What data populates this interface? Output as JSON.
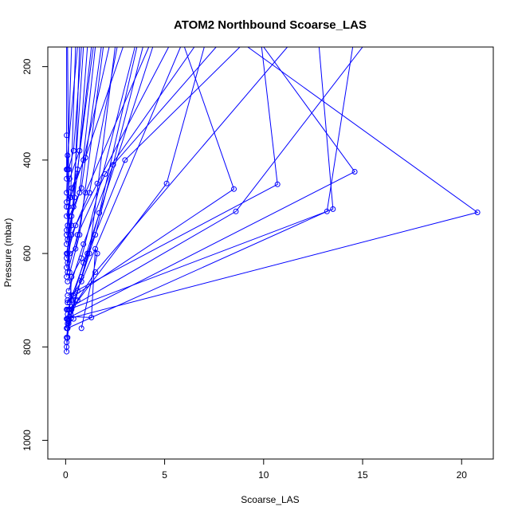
{
  "chart_data": {
    "type": "line",
    "title": "ATOM2 Northbound Scoarse_LAS",
    "xlabel": "Scoarse_LAS",
    "ylabel": "Pressure (mbar)",
    "xlim": [
      -0.9,
      21.6
    ],
    "ylim": [
      1040,
      158
    ],
    "y_reversed": true,
    "x_ticks": [
      0,
      5,
      10,
      15,
      20
    ],
    "y_ticks": [
      200,
      400,
      600,
      800,
      1000
    ],
    "x_tick_labels": [
      "0",
      "5",
      "10",
      "15",
      "20"
    ],
    "y_tick_labels": [
      "200",
      "400",
      "600",
      "800",
      "1000"
    ],
    "grid": false,
    "legend": "none",
    "series_color": "#0000ff",
    "series": [
      {
        "points": [
          [
            0.05,
            810
          ],
          [
            0.05,
            800
          ],
          [
            0.1,
            780
          ],
          [
            0.1,
            760
          ],
          [
            0.15,
            740
          ],
          [
            0.2,
            720
          ],
          [
            0.3,
            650
          ],
          [
            0.8,
            610
          ],
          [
            3.5,
            158
          ]
        ]
      },
      {
        "points": [
          [
            0.05,
            780
          ],
          [
            0.1,
            760
          ],
          [
            13.2,
            510
          ],
          [
            14.5,
            158
          ]
        ]
      },
      {
        "points": [
          [
            0.05,
            760
          ],
          [
            0.1,
            740
          ],
          [
            20.8,
            512
          ],
          [
            9.2,
            158
          ]
        ]
      },
      {
        "points": [
          [
            0.1,
            740
          ],
          [
            0.15,
            720
          ],
          [
            13.5,
            505
          ],
          [
            12.8,
            158
          ]
        ]
      },
      {
        "points": [
          [
            0.05,
            740
          ],
          [
            14.6,
            425
          ],
          [
            10.0,
            158
          ]
        ]
      },
      {
        "points": [
          [
            0.1,
            700
          ],
          [
            8.5,
            462
          ],
          [
            6.0,
            158
          ]
        ]
      },
      {
        "points": [
          [
            0.05,
            720
          ],
          [
            8.6,
            510
          ],
          [
            15.0,
            158
          ]
        ]
      },
      {
        "points": [
          [
            0.1,
            690
          ],
          [
            10.7,
            452
          ],
          [
            9.9,
            158
          ]
        ]
      },
      {
        "points": [
          [
            0.1,
            730
          ],
          [
            5.1,
            450
          ],
          [
            7.0,
            158
          ]
        ]
      },
      {
        "points": [
          [
            0.15,
            750
          ],
          [
            1.7,
            513
          ],
          [
            3.6,
            158
          ]
        ]
      },
      {
        "points": [
          [
            0.2,
            735
          ],
          [
            1.3,
            737
          ],
          [
            1.5,
            590
          ],
          [
            1.6,
            600
          ],
          [
            0.8,
            760
          ]
        ]
      },
      {
        "points": [
          [
            0.05,
            650
          ],
          [
            0.2,
            600
          ],
          [
            0.5,
            590
          ],
          [
            1.0,
            470
          ],
          [
            4.2,
            158
          ]
        ]
      },
      {
        "points": [
          [
            0.1,
            620
          ],
          [
            0.3,
            560
          ],
          [
            1.2,
            470
          ],
          [
            2.6,
            158
          ]
        ]
      },
      {
        "points": [
          [
            0.05,
            580
          ],
          [
            0.2,
            520
          ],
          [
            0.8,
            460
          ],
          [
            1.8,
            158
          ]
        ]
      },
      {
        "points": [
          [
            0.05,
            560
          ],
          [
            0.15,
            500
          ],
          [
            0.6,
            420
          ],
          [
            1.4,
            158
          ]
        ]
      },
      {
        "points": [
          [
            0.1,
            540
          ],
          [
            0.25,
            480
          ],
          [
            0.9,
            400
          ],
          [
            2.2,
            158
          ]
        ]
      },
      {
        "points": [
          [
            0.05,
            520
          ],
          [
            0.3,
            460
          ],
          [
            1.0,
            395
          ],
          [
            2.9,
            158
          ]
        ]
      },
      {
        "points": [
          [
            0.05,
            500
          ],
          [
            0.2,
            440
          ],
          [
            0.7,
            380
          ],
          [
            1.1,
            158
          ]
        ]
      },
      {
        "points": [
          [
            0.05,
            490
          ],
          [
            0.15,
            420
          ],
          [
            0.4,
            380
          ],
          [
            0.8,
            158
          ]
        ]
      },
      {
        "points": [
          [
            0.05,
            470
          ],
          [
            0.1,
            420
          ],
          [
            0.3,
            158
          ]
        ]
      },
      {
        "points": [
          [
            0.05,
            440
          ],
          [
            0.1,
            390
          ],
          [
            0.6,
            158
          ]
        ]
      },
      {
        "points": [
          [
            0.05,
            420
          ],
          [
            0.05,
            347
          ],
          [
            0.05,
            158
          ]
        ]
      },
      {
        "points": [
          [
            0.1,
            600
          ],
          [
            0.5,
            540
          ],
          [
            1.6,
            450
          ],
          [
            5.2,
            158
          ]
        ]
      },
      {
        "points": [
          [
            0.1,
            640
          ],
          [
            0.6,
            560
          ],
          [
            2.0,
            430
          ],
          [
            6.5,
            158
          ]
        ]
      },
      {
        "points": [
          [
            0.15,
            680
          ],
          [
            0.9,
            580
          ],
          [
            2.4,
            410
          ],
          [
            7.6,
            158
          ]
        ]
      },
      {
        "points": [
          [
            0.2,
            705
          ],
          [
            1.1,
            600
          ],
          [
            3.0,
            400
          ],
          [
            8.8,
            158
          ]
        ]
      },
      {
        "points": [
          [
            0.1,
            660
          ],
          [
            0.7,
            560
          ],
          [
            1.9,
            158
          ]
        ]
      },
      {
        "points": [
          [
            0.05,
            600
          ],
          [
            0.4,
            500
          ],
          [
            1.3,
            158
          ]
        ]
      },
      {
        "points": [
          [
            0.05,
            630
          ],
          [
            0.3,
            540
          ],
          [
            0.9,
            158
          ]
        ]
      },
      {
        "points": [
          [
            0.1,
            570
          ],
          [
            0.45,
            480
          ],
          [
            0.7,
            158
          ]
        ]
      },
      {
        "points": [
          [
            0.1,
            760
          ],
          [
            0.5,
            700
          ],
          [
            0.8,
            650
          ],
          [
            1.5,
            560
          ],
          [
            3.9,
            158
          ]
        ]
      },
      {
        "points": [
          [
            0.05,
            790
          ],
          [
            0.3,
            720
          ],
          [
            0.6,
            680
          ],
          [
            1.2,
            600
          ],
          [
            2.5,
            158
          ]
        ]
      },
      {
        "points": [
          [
            0.1,
            720
          ],
          [
            0.4,
            690
          ],
          [
            0.9,
            620
          ],
          [
            4.4,
            158
          ]
        ]
      },
      {
        "points": [
          [
            0.15,
            745
          ],
          [
            0.6,
            700
          ],
          [
            1.5,
            640
          ],
          [
            11.2,
            158
          ]
        ]
      },
      {
        "points": [
          [
            0.1,
            705
          ],
          [
            0.8,
            660
          ],
          [
            5.8,
            158
          ]
        ]
      },
      {
        "points": [
          [
            0.05,
            550
          ],
          [
            0.25,
            480
          ],
          [
            0.5,
            158
          ]
        ]
      },
      {
        "points": [
          [
            0.05,
            610
          ],
          [
            0.3,
            520
          ],
          [
            0.7,
            470
          ],
          [
            1.5,
            158
          ]
        ]
      },
      {
        "points": [
          [
            0.1,
            750
          ],
          [
            0.4,
            740
          ],
          [
            0.3,
            700
          ],
          [
            0.2,
            640
          ],
          [
            0.1,
            158
          ]
        ]
      }
    ]
  }
}
